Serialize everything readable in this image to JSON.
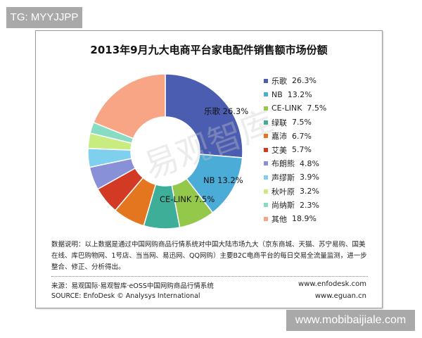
{
  "tag": "TG: MYYJJPP",
  "site": "www.mobibaijiale.com",
  "watermark": "易观智库",
  "chart_data": {
    "type": "pie",
    "donut": true,
    "title": "2013年9月九大电商平台家电配件销售额市场份额",
    "legend_position": "right",
    "slices": [
      {
        "name": "乐歌",
        "value": 26.3,
        "label": "26.3%",
        "color": "#4a5db0"
      },
      {
        "name": "NB",
        "value": 13.2,
        "label": "13.2%",
        "color": "#4bacd8"
      },
      {
        "name": "CE-LINK",
        "value": 7.5,
        "label": "7.5%",
        "color": "#94c84a"
      },
      {
        "name": "绿联",
        "value": 7.5,
        "label": "7.5%",
        "color": "#3fae98"
      },
      {
        "name": "嘉沛",
        "value": 6.7,
        "label": "6.7%",
        "color": "#e3761e"
      },
      {
        "name": "艾美",
        "value": 5.7,
        "label": "5.7%",
        "color": "#d23a26"
      },
      {
        "name": "布朗熊",
        "value": 4.8,
        "label": "4.8%",
        "color": "#8890d8"
      },
      {
        "name": "声缪斯",
        "value": 3.9,
        "label": "3.9%",
        "color": "#7fd0ee"
      },
      {
        "name": "秋叶原",
        "value": 3.2,
        "label": "3.2%",
        "color": "#c8ec80"
      },
      {
        "name": "尚纳斯",
        "value": 2.3,
        "label": "2.3%",
        "color": "#88dcc4"
      },
      {
        "name": "其他",
        "value": 18.9,
        "label": "18.9%",
        "color": "#f7a585"
      }
    ],
    "slice_labels": [
      "乐歌  26.3%",
      "NB  13.2%",
      "CE-LINK  7.5%"
    ]
  },
  "note": "数据说明：以上数据是通过中国网购商品行情系统对中国大陆市场九大（京东商城、天猫、苏宁易购、国美在线、库巴购物网、1号店、当当网、易迅网、QQ网购）主要B2C电商平台的每日交易全流量监测，进一步整合、修正、分析得出。",
  "source_cn": "来源：易观国际·易观智库·eOSS中国网购商品行情系统",
  "source_en": "SOURCE: EnfoDesk © Analysys International",
  "url1": "www.enfodesk.com",
  "url2": "www.eguan.cn"
}
